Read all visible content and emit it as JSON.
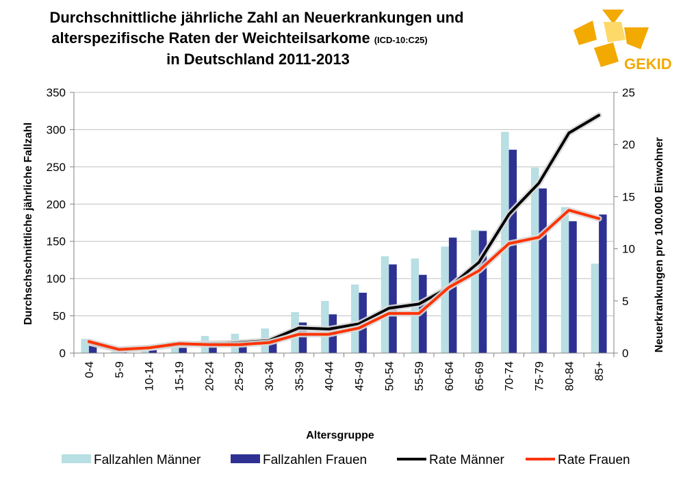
{
  "chart_data": {
    "type": "bar",
    "title_lines": [
      "Durchschnittliche jährliche Zahl an Neuerkrankungen und",
      "alterspezifische Raten der Weichteilsarkome",
      "in Deutschland 2011-2013"
    ],
    "title_code": "(ICD-10:C25)",
    "xlabel": "Altersgruppe",
    "ylabel": "Durchschschnittliche jährliche Fallzahl",
    "y2label": "Neuerkrankungen pro 100.000 Einwohner",
    "ylim": [
      0,
      350
    ],
    "y2lim": [
      0,
      25
    ],
    "yticks": [
      "0",
      "50",
      "100",
      "150",
      "200",
      "250",
      "300",
      "350"
    ],
    "y2ticks": [
      "0",
      "5",
      "10",
      "15",
      "20",
      "25"
    ],
    "categories": [
      "0-4",
      "5-9",
      "10-14",
      "15-19",
      "20-24",
      "25-29",
      "30-34",
      "35-39",
      "40-44",
      "45-49",
      "50-54",
      "55-59",
      "60-64",
      "65-69",
      "70-74",
      "75-79",
      "80-84",
      "85+"
    ],
    "series": [
      {
        "name": "Fallzahlen Männer",
        "kind": "bar",
        "color": "#b8dfe3",
        "values": [
          19,
          2,
          5,
          11,
          23,
          26,
          33,
          55,
          70,
          92,
          130,
          127,
          143,
          165,
          297,
          249,
          196,
          120
        ]
      },
      {
        "name": "Fallzahlen Frauen",
        "kind": "bar",
        "color": "#2e3192",
        "values": [
          10,
          2,
          4,
          7,
          15,
          13,
          17,
          41,
          52,
          81,
          119,
          105,
          155,
          164,
          273,
          221,
          177,
          186
        ]
      },
      {
        "name": "Rate Männer",
        "kind": "line",
        "axis": "right",
        "color": "#000000",
        "values": [
          1.0,
          0.3,
          0.5,
          0.8,
          0.9,
          1.0,
          1.2,
          2.4,
          2.3,
          2.8,
          4.3,
          4.7,
          6.3,
          8.7,
          13.3,
          16.3,
          21.1,
          22.8
        ]
      },
      {
        "name": "Rate Frauen",
        "kind": "line",
        "axis": "right",
        "color": "#ff3300",
        "values": [
          1.1,
          0.35,
          0.5,
          0.9,
          0.8,
          0.8,
          1.0,
          1.8,
          1.8,
          2.4,
          3.8,
          3.8,
          6.3,
          7.9,
          10.5,
          11.1,
          13.7,
          12.9
        ]
      }
    ],
    "legend_position": "bottom",
    "grid": "horizontal"
  },
  "logo": {
    "text": "GEKID",
    "color": "#f2a900"
  }
}
